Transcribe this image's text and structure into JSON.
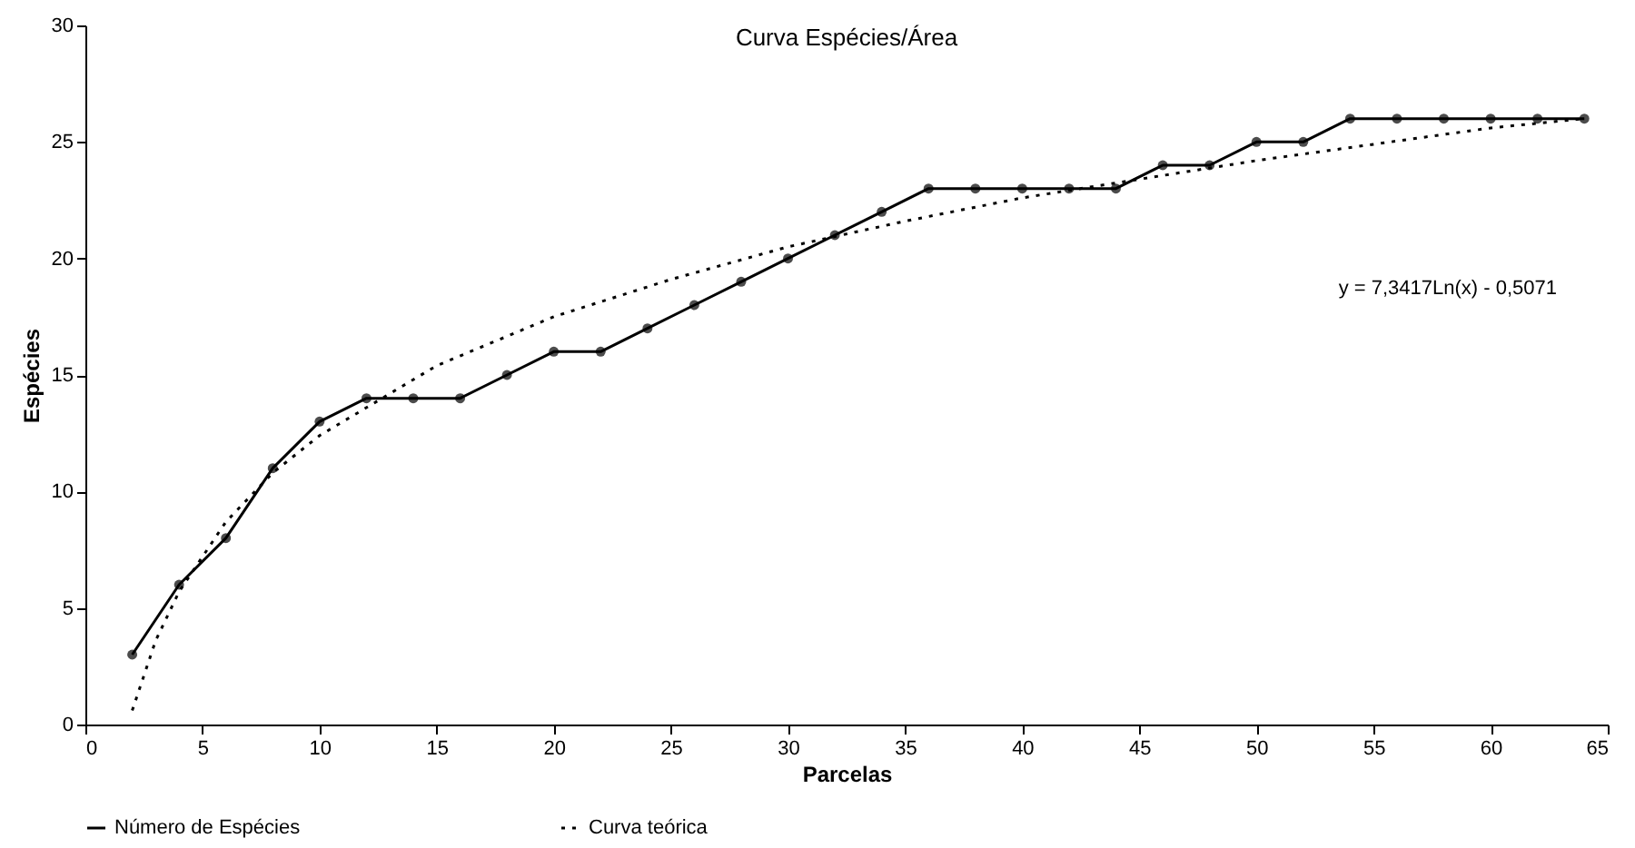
{
  "chart_data": {
    "type": "line",
    "title": "Curva Espécies/Área",
    "xlabel": "Parcelas",
    "ylabel": "Espécies",
    "xlim": [
      0,
      65
    ],
    "xticks": [
      0,
      5,
      10,
      15,
      20,
      25,
      30,
      35,
      40,
      45,
      50,
      55,
      60,
      65
    ],
    "ylim": [
      0,
      30
    ],
    "yticks": [
      0,
      5,
      10,
      15,
      20,
      25,
      30
    ],
    "legend": "bottom",
    "annotations": [
      "y = 7,3417Ln(x) - 0,5071"
    ],
    "series": [
      {
        "name": "Número de Espécies",
        "color": "#000000",
        "marker": "circle",
        "line_style": "solid",
        "x": [
          2,
          4,
          6,
          8,
          10,
          12,
          14,
          16,
          18,
          20,
          22,
          24,
          26,
          28,
          30,
          32,
          34,
          36,
          38,
          40,
          42,
          44,
          46,
          48,
          50,
          52,
          54,
          56,
          58,
          60,
          62,
          64
        ],
        "values": [
          3,
          6,
          8,
          11,
          13,
          14,
          14,
          14,
          15,
          16,
          16,
          17,
          18,
          19,
          20,
          21,
          22,
          23,
          23,
          23,
          23,
          23,
          24,
          24,
          25,
          25,
          26,
          26,
          26,
          26,
          26,
          26
        ]
      },
      {
        "name": "Curva teórica",
        "color": "#000000",
        "marker": "none",
        "line_style": "dotted",
        "x": [
          2,
          3,
          4,
          6,
          8,
          10,
          15,
          20,
          25,
          30,
          35,
          40,
          45,
          50,
          55,
          60,
          64
        ],
        "values": [
          0.6,
          3.6,
          5.7,
          8.7,
          10.8,
          12.4,
          15.4,
          17.5,
          19.1,
          20.5,
          21.6,
          22.6,
          23.4,
          24.2,
          24.9,
          25.6,
          26.0
        ]
      }
    ]
  }
}
